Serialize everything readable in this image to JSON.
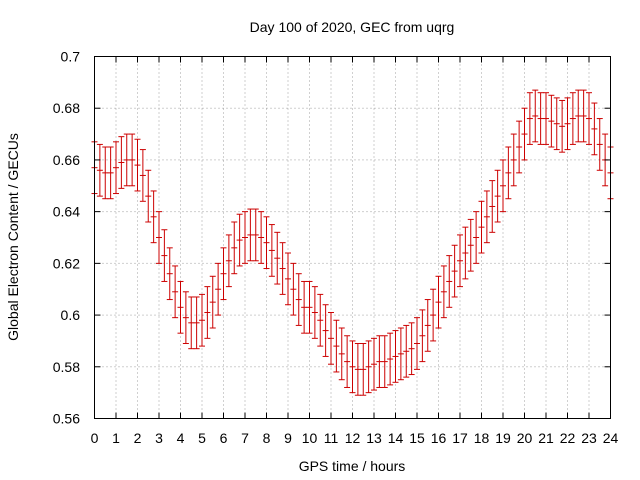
{
  "chart_data": {
    "type": "errorbar",
    "title": "Day 100 of 2020, GEC from uqrg",
    "xlabel": "GPS time / hours",
    "ylabel": "Global Electron Content / GECUs",
    "xlim": [
      0,
      24
    ],
    "ylim": [
      0.56,
      0.7
    ],
    "xticks": [
      "0",
      "1",
      "2",
      "3",
      "4",
      "5",
      "6",
      "7",
      "8",
      "9",
      "10",
      "11",
      "12",
      "13",
      "14",
      "15",
      "16",
      "17",
      "18",
      "19",
      "20",
      "21",
      "22",
      "23",
      "24"
    ],
    "yticks": [
      "0.56",
      "0.58",
      "0.6",
      "0.62",
      "0.64",
      "0.66",
      "0.68",
      "0.7"
    ],
    "grid": true,
    "series": [
      {
        "name": "GEC",
        "color": "#cc0000",
        "error": 0.01,
        "x": [
          0,
          0.25,
          0.5,
          0.75,
          1,
          1.25,
          1.5,
          1.75,
          2,
          2.25,
          2.5,
          2.75,
          3,
          3.25,
          3.5,
          3.75,
          4,
          4.25,
          4.5,
          4.75,
          5,
          5.25,
          5.5,
          5.75,
          6,
          6.25,
          6.5,
          6.75,
          7,
          7.25,
          7.5,
          7.75,
          8,
          8.25,
          8.5,
          8.75,
          9,
          9.25,
          9.5,
          9.75,
          10,
          10.25,
          10.5,
          10.75,
          11,
          11.25,
          11.5,
          11.75,
          12,
          12.25,
          12.5,
          12.75,
          13,
          13.25,
          13.5,
          13.75,
          14,
          14.25,
          14.5,
          14.75,
          15,
          15.25,
          15.5,
          15.75,
          16,
          16.25,
          16.5,
          16.75,
          17,
          17.25,
          17.5,
          17.75,
          18,
          18.25,
          18.5,
          18.75,
          19,
          19.25,
          19.5,
          19.75,
          20,
          20.25,
          20.5,
          20.75,
          21,
          21.25,
          21.5,
          21.75,
          22,
          22.25,
          22.5,
          22.75,
          23,
          23.25,
          23.5,
          23.75,
          24
        ],
        "y": [
          0.657,
          0.656,
          0.655,
          0.655,
          0.657,
          0.659,
          0.66,
          0.66,
          0.658,
          0.654,
          0.646,
          0.638,
          0.63,
          0.623,
          0.616,
          0.609,
          0.603,
          0.599,
          0.597,
          0.597,
          0.598,
          0.601,
          0.605,
          0.61,
          0.616,
          0.621,
          0.626,
          0.629,
          0.63,
          0.631,
          0.631,
          0.63,
          0.628,
          0.625,
          0.622,
          0.618,
          0.614,
          0.61,
          0.606,
          0.603,
          0.603,
          0.601,
          0.598,
          0.594,
          0.591,
          0.588,
          0.585,
          0.582,
          0.58,
          0.579,
          0.579,
          0.58,
          0.581,
          0.582,
          0.582,
          0.583,
          0.584,
          0.585,
          0.586,
          0.587,
          0.589,
          0.592,
          0.596,
          0.6,
          0.605,
          0.609,
          0.613,
          0.617,
          0.621,
          0.624,
          0.627,
          0.63,
          0.634,
          0.638,
          0.642,
          0.646,
          0.65,
          0.655,
          0.66,
          0.665,
          0.67,
          0.676,
          0.677,
          0.676,
          0.676,
          0.675,
          0.674,
          0.673,
          0.674,
          0.676,
          0.677,
          0.677,
          0.676,
          0.672,
          0.666,
          0.66,
          0.655
        ]
      }
    ]
  }
}
